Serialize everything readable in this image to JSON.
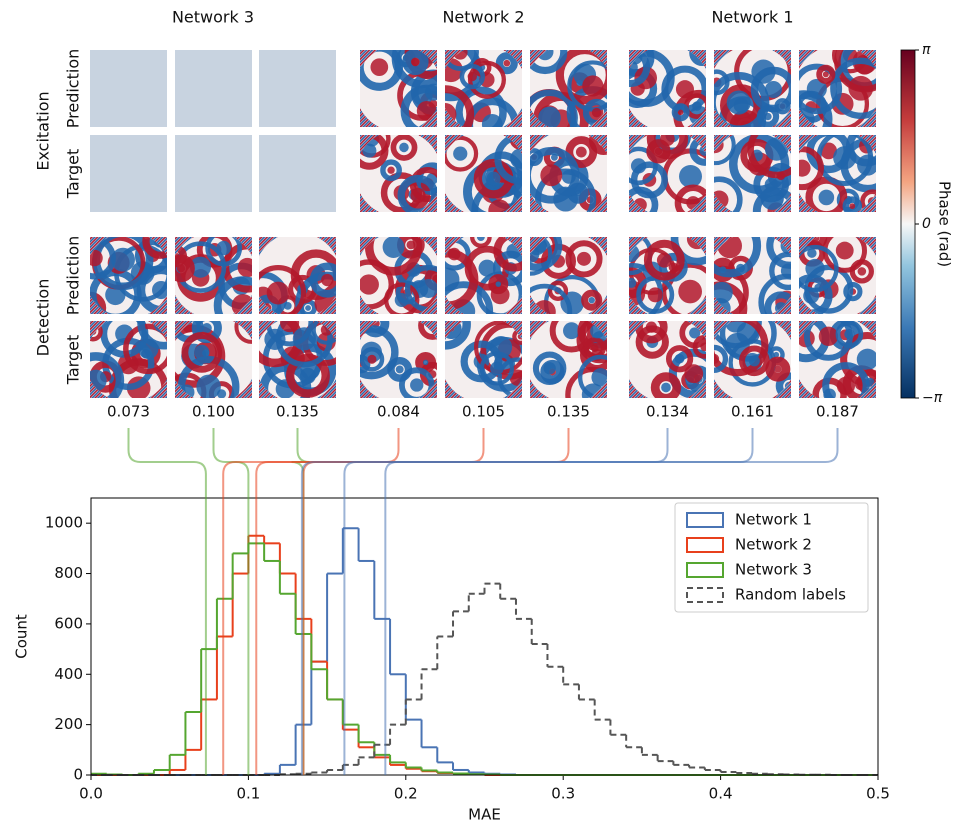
{
  "panels": {
    "columns": [
      "Network 3",
      "Network 2",
      "Network 1"
    ],
    "groups": [
      "Excitation",
      "Detection"
    ],
    "rows": [
      "Prediction",
      "Target"
    ],
    "colorbar": {
      "label": "Phase (rad)",
      "ticks": [
        {
          "value": 3.14159,
          "label": "π"
        },
        0,
        {
          "value": -3.14159,
          "label": "−π"
        }
      ]
    },
    "mae": [
      [
        {
          "value": 0.073,
          "label": "0.073"
        },
        {
          "value": 0.1,
          "label": "0.100"
        },
        {
          "value": 0.135,
          "label": "0.135"
        }
      ],
      [
        {
          "value": 0.084,
          "label": "0.084"
        },
        {
          "value": 0.105,
          "label": "0.105"
        },
        {
          "value": 0.135,
          "label": "0.135"
        }
      ],
      [
        {
          "value": 0.134,
          "label": "0.134"
        },
        {
          "value": 0.161,
          "label": "0.161"
        },
        {
          "value": 0.187,
          "label": "0.187"
        }
      ]
    ]
  },
  "chart_data": {
    "type": "histogram",
    "xlabel": "MAE",
    "ylabel": "Count",
    "xlim": [
      0,
      0.5
    ],
    "ylim": [
      0,
      1100
    ],
    "xticks": [
      {
        "value": 0,
        "label": "0.0"
      },
      0.1,
      0.2,
      0.3,
      0.4,
      0.5
    ],
    "yticks": [
      0,
      200,
      400,
      600,
      800,
      1000
    ],
    "legend": "upper right",
    "bins": [
      0,
      0.01,
      0.02,
      0.03,
      0.04,
      0.05,
      0.06,
      0.07,
      0.08,
      0.09,
      0.1,
      0.11,
      0.12,
      0.13,
      0.14,
      0.15,
      0.16,
      0.17,
      0.18,
      0.19,
      0.2,
      0.21,
      0.22,
      0.23,
      0.24,
      0.25,
      0.26,
      0.27,
      0.28,
      0.29,
      0.3,
      0.31,
      0.32,
      0.33,
      0.34,
      0.35,
      0.36,
      0.37,
      0.38,
      0.39,
      0.4,
      0.41,
      0.42,
      0.43,
      0.44,
      0.45,
      0.46,
      0.47,
      0.48,
      0.49,
      0.5
    ],
    "series": [
      {
        "name": "Network 1",
        "color": "#4a74b4",
        "linestyle": "solid",
        "values": [
          0,
          0,
          0,
          0,
          0,
          0,
          0,
          0,
          0,
          0,
          0,
          5,
          40,
          200,
          450,
          800,
          980,
          850,
          620,
          400,
          220,
          110,
          50,
          20,
          10,
          5,
          2,
          0,
          0,
          0,
          0,
          0,
          0,
          0,
          0,
          0,
          0,
          0,
          0,
          0,
          0,
          0,
          0,
          0,
          0,
          0,
          0,
          0,
          0,
          0
        ]
      },
      {
        "name": "Network 2",
        "color": "#e8401c",
        "linestyle": "solid",
        "values": [
          0,
          0,
          0,
          0,
          0,
          20,
          100,
          300,
          550,
          800,
          950,
          920,
          800,
          620,
          450,
          300,
          180,
          110,
          70,
          40,
          25,
          15,
          8,
          4,
          2,
          0,
          0,
          0,
          0,
          0,
          0,
          0,
          0,
          0,
          0,
          0,
          0,
          0,
          0,
          0,
          0,
          0,
          0,
          0,
          0,
          0,
          0,
          0,
          0,
          0
        ]
      },
      {
        "name": "Network 3",
        "color": "#55a630",
        "linestyle": "solid",
        "values": [
          5,
          2,
          0,
          5,
          20,
          80,
          250,
          500,
          700,
          880,
          920,
          850,
          720,
          560,
          420,
          300,
          200,
          130,
          80,
          50,
          30,
          18,
          10,
          6,
          3,
          2,
          0,
          0,
          0,
          0,
          0,
          0,
          0,
          0,
          0,
          0,
          0,
          0,
          0,
          0,
          0,
          0,
          0,
          0,
          0,
          0,
          0,
          0,
          0,
          0
        ]
      },
      {
        "name": "Random labels",
        "color": "#555555",
        "linestyle": "dashed",
        "values": [
          0,
          0,
          0,
          0,
          0,
          0,
          0,
          0,
          0,
          0,
          0,
          0,
          3,
          5,
          10,
          20,
          40,
          70,
          120,
          200,
          300,
          420,
          550,
          650,
          720,
          760,
          700,
          620,
          520,
          430,
          360,
          300,
          220,
          160,
          110,
          80,
          55,
          40,
          30,
          20,
          12,
          8,
          5,
          3,
          2,
          1,
          1,
          0,
          0,
          0
        ]
      }
    ]
  }
}
